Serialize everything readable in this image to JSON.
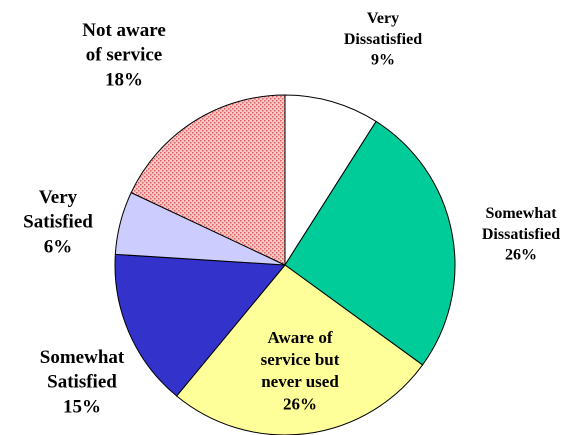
{
  "chart_data": {
    "type": "pie",
    "title": "",
    "slices": [
      {
        "label_lines": [
          "Very",
          "Dissatisfied"
        ],
        "value": 9,
        "pct": "9%",
        "color": "#ffffff",
        "pattern": "none"
      },
      {
        "label_lines": [
          "Somewhat",
          "Dissatisfied"
        ],
        "value": 26,
        "pct": "26%",
        "color": "#00cc99",
        "pattern": "none"
      },
      {
        "label_lines": [
          "Aware of",
          "service but",
          "never used"
        ],
        "value": 26,
        "pct": "26%",
        "color": "#ffff99",
        "pattern": "none"
      },
      {
        "label_lines": [
          "Somewhat",
          "Satisfied"
        ],
        "value": 15,
        "pct": "15%",
        "color": "#3333cc",
        "pattern": "none"
      },
      {
        "label_lines": [
          "Very",
          "Satisfied"
        ],
        "value": 6,
        "pct": "6%",
        "color": "#ccccff",
        "pattern": "none"
      },
      {
        "label_lines": [
          "Not aware",
          "of service"
        ],
        "value": 18,
        "pct": "18%",
        "color": "#ff9999",
        "pattern": "dots"
      }
    ],
    "start_angle_deg": 0,
    "direction": "clockwise"
  }
}
